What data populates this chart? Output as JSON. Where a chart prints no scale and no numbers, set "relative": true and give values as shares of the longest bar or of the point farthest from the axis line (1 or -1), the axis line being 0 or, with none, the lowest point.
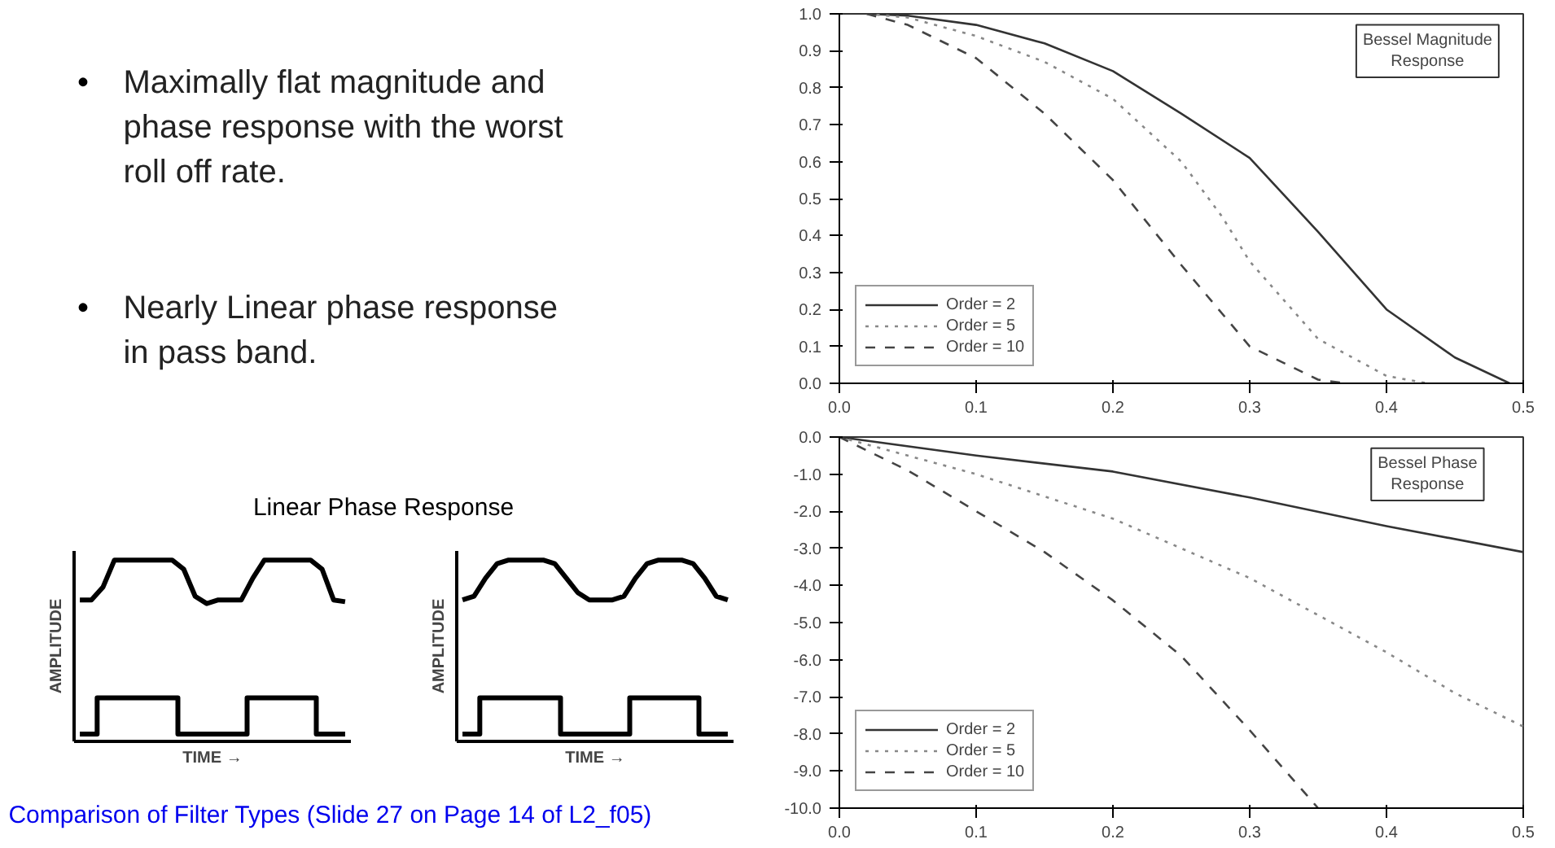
{
  "chart_data": [
    {
      "type": "other",
      "annotations": [
        "• Maximally flat magnitude and phase response with the worst roll off rate.",
        "• Nearly Linear phase response in pass band."
      ],
      "subtitle": "Linear Phase Response"
    },
    {
      "type": "line",
      "relative": true,
      "xlabel": "TIME →",
      "ylabel": "AMPLITUDE",
      "categories": [
        null,
        null,
        null,
        null,
        null,
        null,
        null,
        null,
        null,
        null,
        null,
        null,
        null,
        null,
        null,
        null,
        null,
        null,
        null,
        null,
        null,
        null,
        null,
        null
      ],
      "series": [
        {
          "type": "step",
          "color": "#000000",
          "values": [
            0.04,
            0.04,
            0.24,
            0.24,
            0.24,
            0.24,
            0.24,
            0.24,
            0.24,
            0.04,
            0.04,
            0.04,
            0.04,
            0.04,
            0.04,
            0.24,
            0.24,
            0.24,
            0.24,
            0.24,
            0.24,
            0.04,
            0.04,
            0.04
          ]
        },
        {
          "type": "line",
          "color": "#000000",
          "values": [
            0.78,
            0.78,
            0.85,
            1,
            1,
            1,
            1,
            1,
            1,
            0.95,
            0.8,
            0.76,
            0.78,
            0.78,
            0.78,
            0.9,
            1,
            1,
            1,
            1,
            1,
            0.95,
            0.78,
            0.77
          ]
        }
      ]
    },
    {
      "type": "line",
      "relative": true,
      "xlabel": "TIME →",
      "ylabel": "AMPLITUDE",
      "categories": [
        null,
        null,
        null,
        null,
        null,
        null,
        null,
        null,
        null,
        null,
        null,
        null,
        null,
        null,
        null,
        null,
        null,
        null,
        null,
        null,
        null,
        null,
        null,
        null
      ],
      "series": [
        {
          "type": "step",
          "color": "#000000",
          "values": [
            0.04,
            0.04,
            0.24,
            0.24,
            0.24,
            0.24,
            0.24,
            0.24,
            0.24,
            0.04,
            0.04,
            0.04,
            0.04,
            0.04,
            0.04,
            0.24,
            0.24,
            0.24,
            0.24,
            0.24,
            0.24,
            0.04,
            0.04,
            0.04
          ]
        },
        {
          "type": "line",
          "color": "#000000",
          "values": [
            0.78,
            0.8,
            0.9,
            0.98,
            1,
            1,
            1,
            1,
            0.98,
            0.9,
            0.82,
            0.78,
            0.78,
            0.78,
            0.8,
            0.9,
            0.98,
            1,
            1,
            1,
            0.98,
            0.9,
            0.8,
            0.78
          ]
        }
      ]
    },
    {
      "type": "line",
      "title": "Bessel Magnitude Response",
      "legend": "bottom left",
      "grid": false,
      "xlim": [
        0,
        0.5
      ],
      "ylim": [
        0,
        1.0
      ],
      "xticks": [
        {
          "value": 0,
          "label": "0.0"
        },
        0.1,
        0.2,
        0.3,
        0.4,
        0.5
      ],
      "yticks": [
        {
          "value": 0,
          "label": "0.0"
        },
        0.1,
        0.2,
        0.3,
        0.4,
        0.5,
        0.6,
        0.7,
        0.8,
        0.9,
        {
          "value": 1,
          "label": "1.0"
        }
      ],
      "series": [
        {
          "name": "Order = 2",
          "color": "#333333",
          "line_style": "solid",
          "x": [
            0.02,
            0.05,
            0.1,
            0.15,
            0.2,
            0.25,
            0.3,
            0.35,
            0.4,
            0.45,
            0.49
          ],
          "values": [
            1,
            0.995,
            0.97,
            0.92,
            0.845,
            0.73,
            0.61,
            0.41,
            0.2,
            0.07,
            0
          ]
        },
        {
          "name": "Order = 5",
          "color": "#888888",
          "line_style": "dotted",
          "x": [
            0.02,
            0.05,
            0.1,
            0.15,
            0.2,
            0.25,
            0.28,
            0.3,
            0.35,
            0.4,
            0.43
          ],
          "values": [
            1,
            0.99,
            0.94,
            0.87,
            0.77,
            0.6,
            0.45,
            0.33,
            0.12,
            0.02,
            0
          ]
        },
        {
          "name": "Order = 10",
          "color": "#444444",
          "line_style": "dashed",
          "x": [
            0.02,
            0.05,
            0.1,
            0.15,
            0.2,
            0.25,
            0.3,
            0.35,
            0.37
          ],
          "values": [
            1,
            0.97,
            0.88,
            0.73,
            0.55,
            0.32,
            0.1,
            0.01,
            0
          ]
        }
      ]
    },
    {
      "type": "line",
      "title": "Bessel Phase Response",
      "legend": "bottom left",
      "grid": false,
      "xlim": [
        0,
        0.5
      ],
      "ylim": [
        -10,
        0
      ],
      "xticks": [
        {
          "value": 0,
          "label": "0.0"
        },
        0.1,
        0.2,
        0.3,
        0.4,
        0.5
      ],
      "yticks": [
        {
          "value": 0,
          "label": "0.0"
        },
        {
          "value": -1,
          "label": "-1.0"
        },
        {
          "value": -2,
          "label": "-2.0"
        },
        {
          "value": -3,
          "label": "-3.0"
        },
        {
          "value": -4,
          "label": "-4.0"
        },
        {
          "value": -5,
          "label": "-5.0"
        },
        {
          "value": -6,
          "label": "-6.0"
        },
        {
          "value": -7,
          "label": "-7.0"
        },
        {
          "value": -8,
          "label": "-8.0"
        },
        {
          "value": -9,
          "label": "-9.0"
        },
        {
          "value": -10,
          "label": "-10.0"
        }
      ],
      "series": [
        {
          "name": "Order = 2",
          "color": "#333333",
          "line_style": "solid",
          "x": [
            0,
            0.1,
            0.2,
            0.3,
            0.4,
            0.5
          ],
          "values": [
            0,
            -0.5,
            -0.93,
            -1.63,
            -2.4,
            -3.1
          ]
        },
        {
          "name": "Order = 5",
          "color": "#888888",
          "line_style": "dotted",
          "x": [
            0,
            0.1,
            0.2,
            0.3,
            0.4,
            0.45,
            0.5
          ],
          "values": [
            0,
            -1.0,
            -2.2,
            -3.8,
            -5.8,
            -6.9,
            -7.8
          ]
        },
        {
          "name": "Order = 10",
          "color": "#444444",
          "line_style": "dashed",
          "x": [
            0,
            0.05,
            0.1,
            0.15,
            0.2,
            0.25,
            0.3,
            0.35
          ],
          "values": [
            0,
            -0.9,
            -2.0,
            -3.1,
            -4.4,
            -5.9,
            -7.9,
            -10.0
          ]
        }
      ]
    },
    {
      "type": "other",
      "annotations": [
        "Comparison of Filter Types (Slide 27 on Page 14 of L2_f05)"
      ]
    }
  ]
}
